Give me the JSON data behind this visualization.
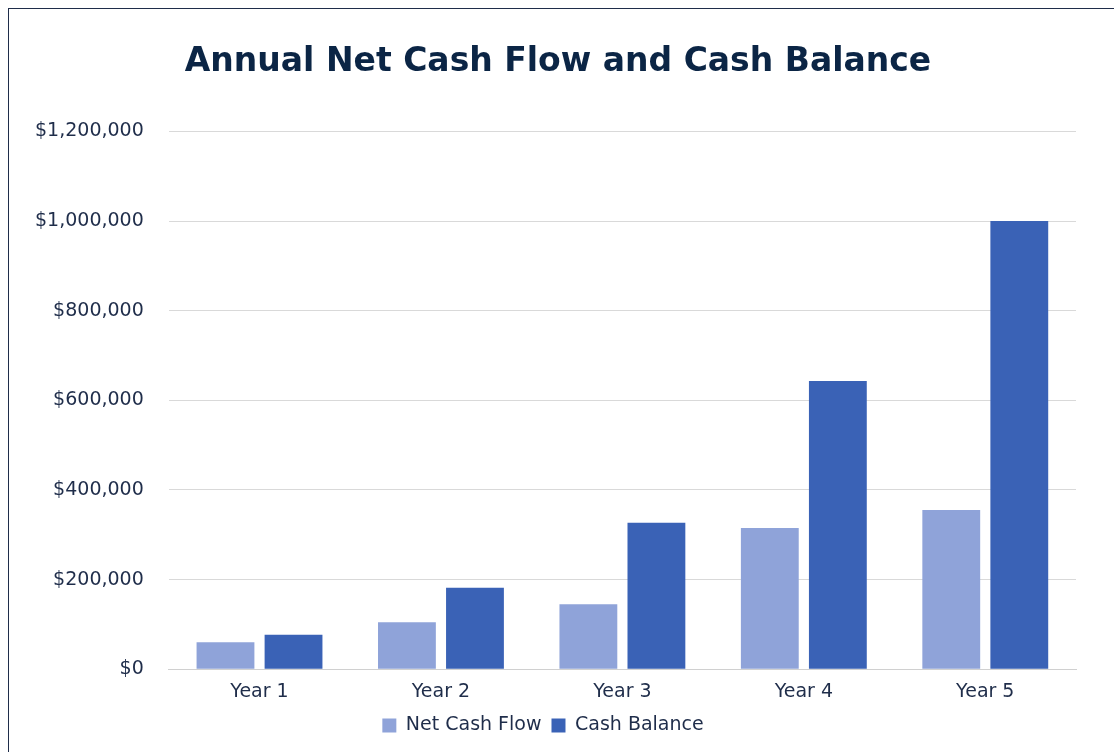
{
  "chart_data": {
    "type": "bar",
    "title": "Annual Net Cash Flow and Cash Balance",
    "categories": [
      "Year 1",
      "Year 2",
      "Year 3",
      "Year 4",
      "Year 5"
    ],
    "series": [
      {
        "name": "Net Cash Flow",
        "color": "#8fa3d9",
        "values": [
          60000,
          105000,
          145000,
          315000,
          355000
        ]
      },
      {
        "name": "Cash Balance",
        "color": "#3a62b6",
        "values": [
          77000,
          182000,
          327000,
          643000,
          1000000
        ]
      }
    ],
    "ylim": [
      0,
      1200000
    ],
    "yticks": [
      {
        "value": 0,
        "label": "$0"
      },
      {
        "value": 200000,
        "label": "$200,000"
      },
      {
        "value": 400000,
        "label": "$400,000"
      },
      {
        "value": 600000,
        "label": "$600,000"
      },
      {
        "value": 800000,
        "label": "$800,000"
      },
      {
        "value": 1000000,
        "label": "$1,000,000"
      },
      {
        "value": 1200000,
        "label": "$1,200,000"
      }
    ],
    "grid": "y",
    "legend": "bottom"
  }
}
